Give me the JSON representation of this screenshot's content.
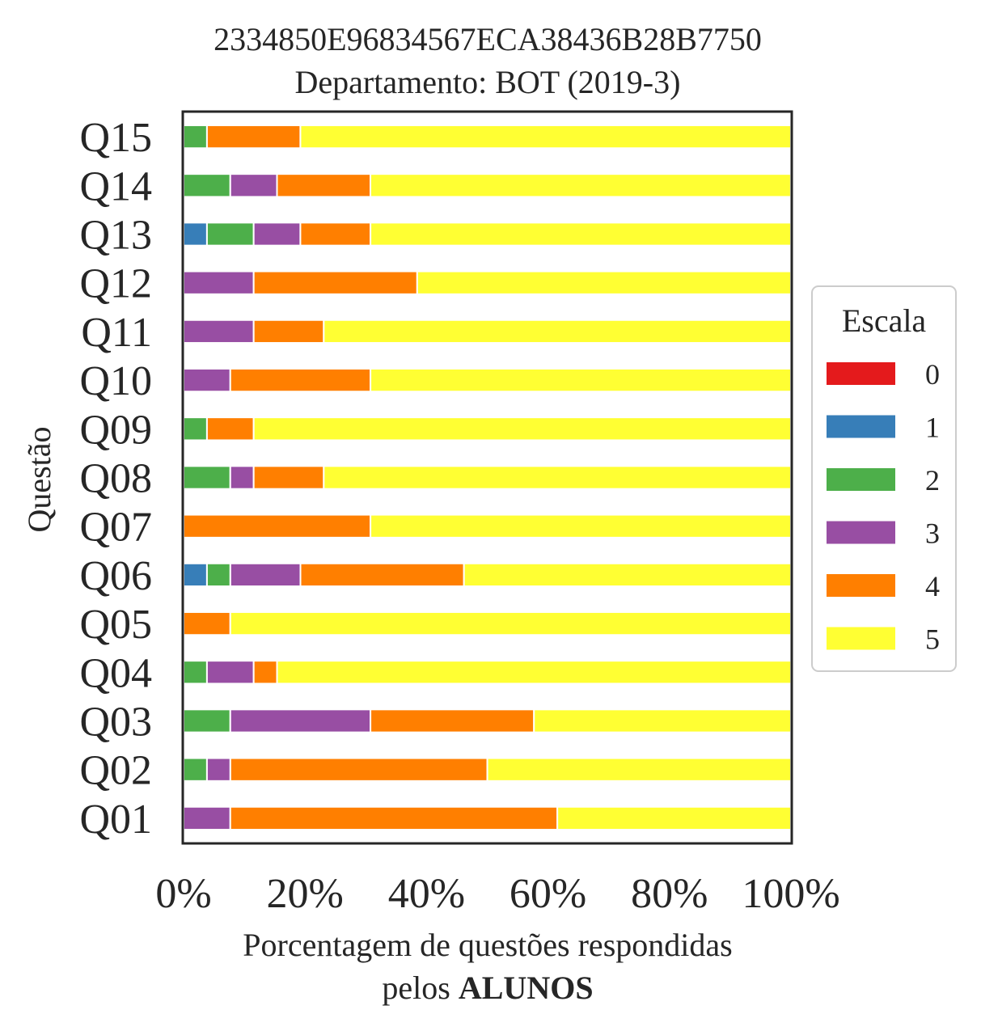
{
  "chart_data": {
    "type": "bar",
    "orientation": "horizontal",
    "stacked": true,
    "title_line1": "2334850E96834567ECA38436B28B7750",
    "title_line2": "Departamento: BOT (2019-3)",
    "ylabel": "Questão",
    "xlabel_line1": "Porcentagem de questões respondidas",
    "xlabel_line2_prefix": "pelos ",
    "xlabel_line2_bold": "ALUNOS",
    "xlim": [
      0,
      100
    ],
    "xticks": [
      "0%",
      "20%",
      "40%",
      "60%",
      "80%",
      "100%"
    ],
    "xtick_values": [
      0,
      20,
      40,
      60,
      80,
      100
    ],
    "categories": [
      "Q01",
      "Q02",
      "Q03",
      "Q04",
      "Q05",
      "Q06",
      "Q07",
      "Q08",
      "Q09",
      "Q10",
      "Q11",
      "Q12",
      "Q13",
      "Q14",
      "Q15"
    ],
    "legend": {
      "title": "Escala",
      "placement": "center-right"
    },
    "series": [
      {
        "name": "0",
        "color": "#e41a1c",
        "values": [
          0,
          0,
          0,
          0,
          0,
          0,
          0,
          0,
          0,
          0,
          0,
          0,
          0,
          0,
          0
        ]
      },
      {
        "name": "1",
        "color": "#377eb8",
        "values": [
          0,
          0,
          0,
          0,
          0,
          3.85,
          0,
          0,
          0,
          0,
          0,
          0,
          3.85,
          0,
          0
        ]
      },
      {
        "name": "2",
        "color": "#4daf4a",
        "values": [
          0,
          3.85,
          7.69,
          3.85,
          0,
          3.85,
          0,
          7.69,
          3.85,
          0,
          0,
          0,
          7.69,
          7.69,
          3.85
        ]
      },
      {
        "name": "3",
        "color": "#984ea3",
        "values": [
          7.69,
          3.85,
          23.08,
          7.69,
          0,
          11.54,
          0,
          3.85,
          0,
          7.69,
          11.54,
          11.54,
          7.69,
          7.69,
          0
        ]
      },
      {
        "name": "4",
        "color": "#ff7f00",
        "values": [
          53.85,
          42.31,
          26.92,
          3.85,
          7.69,
          26.92,
          30.77,
          11.54,
          7.69,
          23.08,
          11.54,
          26.92,
          11.54,
          15.38,
          15.38
        ]
      },
      {
        "name": "5",
        "color": "#ffff33",
        "values": [
          38.46,
          50.0,
          42.31,
          84.62,
          92.31,
          53.85,
          69.23,
          76.92,
          88.46,
          69.23,
          76.92,
          61.54,
          69.23,
          69.23,
          80.77
        ]
      }
    ]
  }
}
